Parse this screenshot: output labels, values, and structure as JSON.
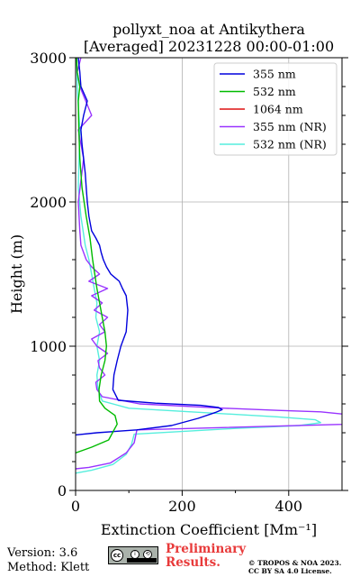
{
  "chart_data": {
    "type": "line",
    "title": [
      "pollyxt_noa at Antikythera",
      "[Averaged] 20231228 00:00-01:00"
    ],
    "xlabel": "Extinction Coefficient [Mm⁻¹]",
    "ylabel": "Height (m)",
    "xlim": [
      0,
      500
    ],
    "ylim": [
      0,
      3000
    ],
    "xticks": [
      0,
      200,
      400
    ],
    "yticks": [
      0,
      1000,
      2000,
      3000
    ],
    "grid": true,
    "legend_position": "top-right",
    "series": [
      {
        "name": "355 nm",
        "color": "#0000dd",
        "x": [
          0,
          40,
          115,
          180,
          230,
          262,
          275,
          268,
          235,
          150,
          80,
          70,
          72,
          78,
          85,
          95,
          98,
          95,
          88,
          82,
          66,
          58,
          52,
          48,
          45,
          38,
          30,
          25,
          22,
          20,
          18,
          15,
          12,
          10,
          15,
          22,
          10,
          8,
          5
        ],
        "y": [
          385,
          400,
          420,
          450,
          500,
          540,
          560,
          575,
          590,
          605,
          625,
          700,
          800,
          900,
          1000,
          1100,
          1250,
          1350,
          1400,
          1450,
          1500,
          1550,
          1600,
          1650,
          1700,
          1750,
          1800,
          1900,
          2000,
          2100,
          2200,
          2300,
          2400,
          2500,
          2600,
          2700,
          2800,
          2900,
          3000
        ]
      },
      {
        "name": "532 nm",
        "color": "#00bb00",
        "x": [
          0,
          30,
          62,
          78,
          74,
          55,
          45,
          44,
          48,
          55,
          58,
          55,
          50,
          40,
          32,
          27,
          20,
          12,
          8,
          6,
          5,
          8,
          3,
          2
        ],
        "y": [
          260,
          300,
          350,
          460,
          520,
          570,
          620,
          700,
          800,
          900,
          1000,
          1100,
          1200,
          1400,
          1600,
          1750,
          1900,
          2100,
          2300,
          2500,
          2700,
          2800,
          2900,
          3000
        ]
      },
      {
        "name": "1064 nm",
        "color": "#dd1111",
        "x": [],
        "y": []
      },
      {
        "name": "355 nm (NR)",
        "color": "#9933ff",
        "x": [
          0,
          25,
          65,
          95,
          110,
          115,
          520,
          500,
          460,
          380,
          280,
          120,
          50,
          40,
          38,
          55,
          45,
          42,
          60,
          40,
          30,
          55,
          45,
          60,
          35,
          50,
          30,
          60,
          25,
          45,
          30,
          20,
          10,
          8,
          5,
          15,
          5,
          30,
          8,
          3,
          10
        ],
        "y": [
          150,
          160,
          190,
          260,
          330,
          420,
          460,
          530,
          545,
          555,
          570,
          600,
          650,
          700,
          750,
          800,
          850,
          900,
          950,
          1000,
          1050,
          1100,
          1150,
          1200,
          1250,
          1300,
          1350,
          1400,
          1450,
          1500,
          1550,
          1600,
          1700,
          1800,
          2000,
          2300,
          2500,
          2600,
          2800,
          2900,
          3000
        ]
      },
      {
        "name": "532 nm (NR)",
        "color": "#55eedd",
        "x": [
          0,
          30,
          70,
          95,
          105,
          110,
          300,
          420,
          460,
          450,
          380,
          100,
          50,
          42,
          40,
          45,
          40,
          45,
          38,
          40,
          35,
          30,
          25,
          18,
          10,
          5,
          8,
          3,
          2
        ],
        "y": [
          120,
          140,
          180,
          250,
          320,
          390,
          430,
          450,
          470,
          490,
          510,
          570,
          620,
          700,
          800,
          900,
          1000,
          1100,
          1200,
          1300,
          1400,
          1500,
          1600,
          1700,
          1900,
          2100,
          2500,
          2800,
          3000
        ]
      }
    ]
  },
  "footer": {
    "version": "Version: 3.6",
    "method": "Method: Klett",
    "preliminary": [
      "Preliminary",
      "Results."
    ],
    "copyright": [
      "© TROPOS & NOA 2023.",
      "CC BY SA 4.0 License."
    ],
    "cc_badge": "CC BY SA"
  }
}
